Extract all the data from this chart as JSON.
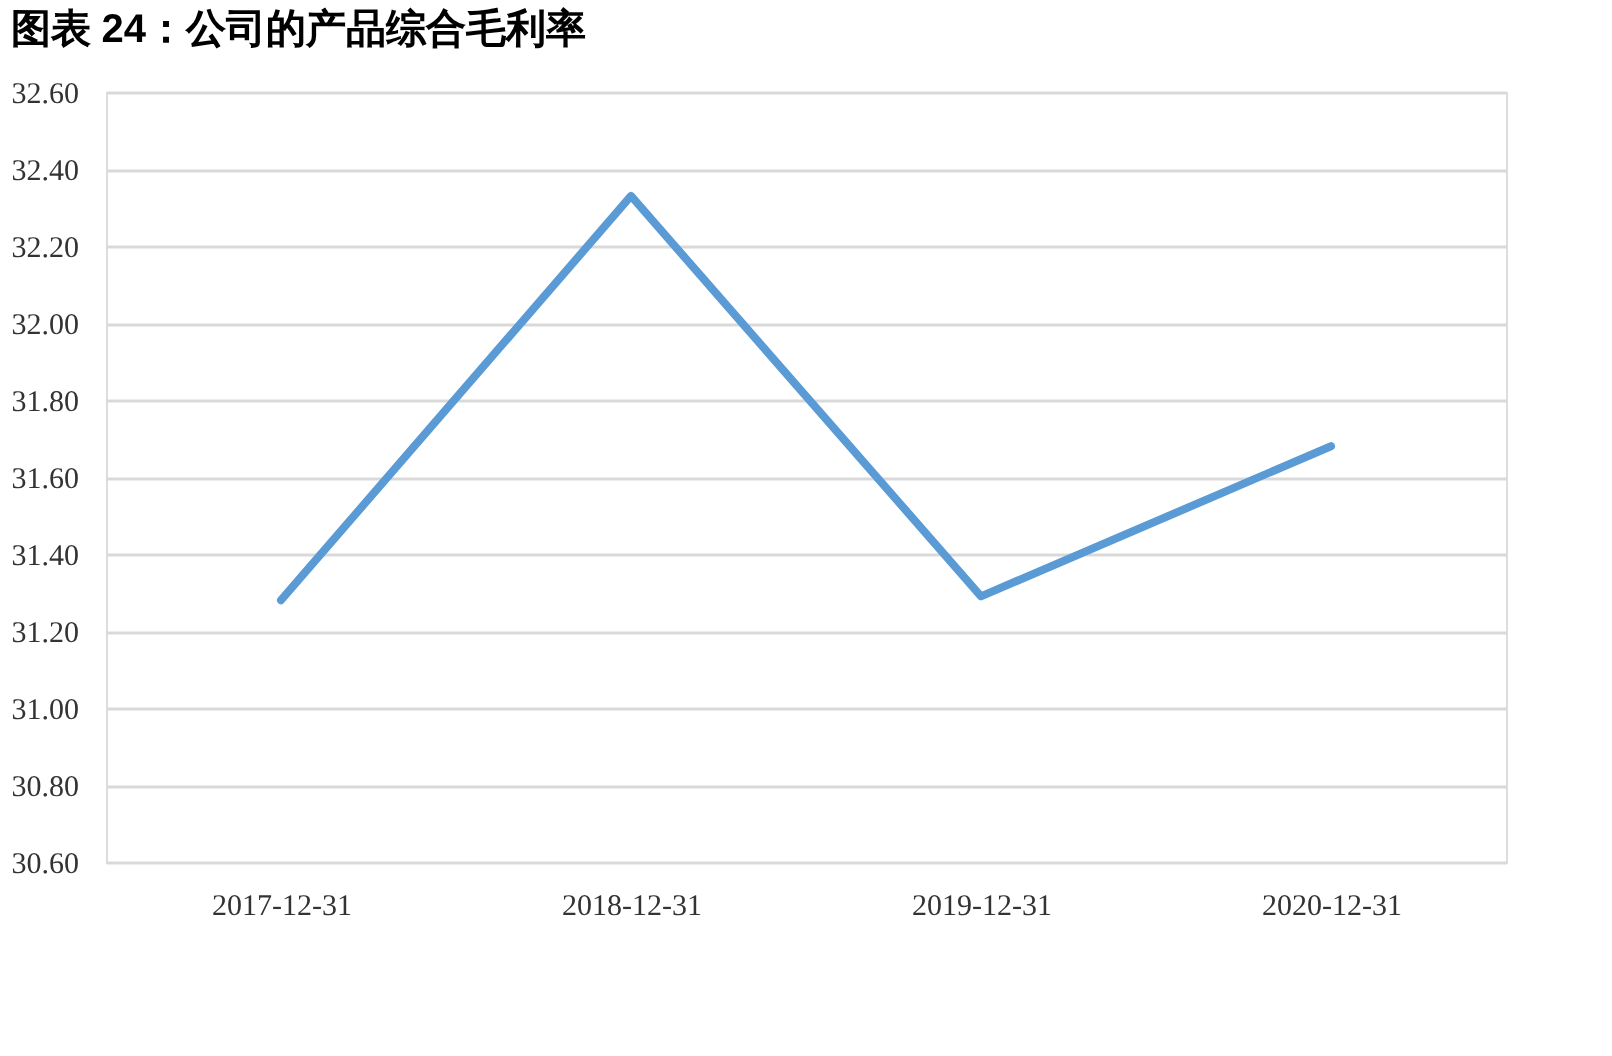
{
  "chart_data": {
    "type": "line",
    "title": "图表 24：公司的产品综合毛利率",
    "categories": [
      "2017-12-31",
      "2018-12-31",
      "2019-12-31",
      "2020-12-31"
    ],
    "series": [
      {
        "color": "#5b9bd5",
        "values": [
          31.28,
          32.33,
          31.29,
          31.68
        ]
      }
    ],
    "ylim": [
      30.6,
      32.6
    ],
    "yticks": [
      {
        "value": 30.6,
        "label": "30.60"
      },
      {
        "value": 30.8,
        "label": "30.80"
      },
      {
        "value": 31.0,
        "label": "31.00"
      },
      {
        "value": 31.2,
        "label": "31.20"
      },
      {
        "value": 31.4,
        "label": "31.40"
      },
      {
        "value": 31.6,
        "label": "31.60"
      },
      {
        "value": 31.8,
        "label": "31.80"
      },
      {
        "value": 32.0,
        "label": "32.00"
      },
      {
        "value": 32.2,
        "label": "32.20"
      },
      {
        "value": 32.4,
        "label": "32.40"
      },
      {
        "value": 32.6,
        "label": "32.60"
      }
    ],
    "grid": "y",
    "marker": "none",
    "line_style": "solid"
  }
}
